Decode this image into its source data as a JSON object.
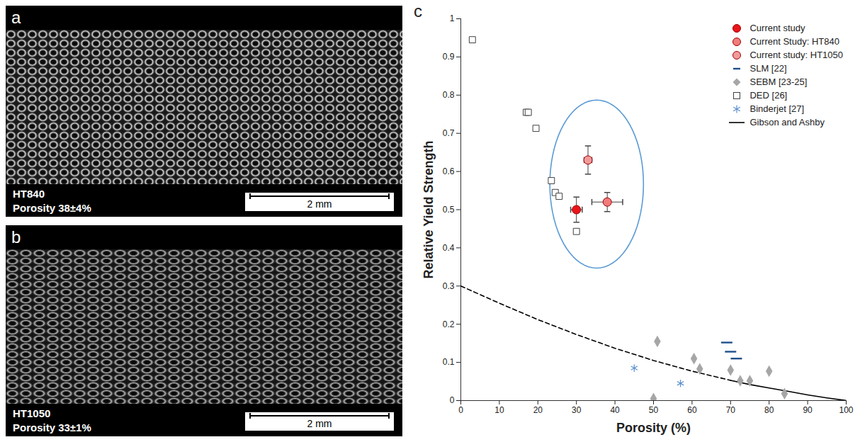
{
  "panels": [
    {
      "letter": "a",
      "label": "HT840",
      "caption": "Porosity 38±4%",
      "scale_bar": "2 mm"
    },
    {
      "letter": "b",
      "label": "HT1050",
      "caption": "Porosity 33±1%",
      "scale_bar": "2 mm"
    }
  ],
  "chart_panel": "c",
  "chart_data": {
    "type": "scatter",
    "x_label": "Porosity (%)",
    "y_label": "Relative Yield Strength",
    "xlim": [
      0,
      100
    ],
    "xticks": [
      0,
      10,
      20,
      30,
      40,
      50,
      60,
      70,
      80,
      90,
      100
    ],
    "ylim": [
      0,
      1
    ],
    "yticks": [
      0,
      0.1,
      0.2,
      0.3,
      0.4,
      0.5,
      0.6,
      0.7,
      0.8,
      0.9,
      1
    ],
    "grid": false,
    "legend": "top-right",
    "series": [
      {
        "name": "Current study",
        "type": "scatter",
        "marker": "circle",
        "color": "#e8161b",
        "x": [
          30
        ],
        "values": [
          0.5
        ],
        "xerr": [
          1.5
        ],
        "yerr": [
          0.033
        ]
      },
      {
        "name": "Current Study: HT840",
        "type": "scatter",
        "marker": "circle",
        "color": "#f07c7c",
        "x": [
          38
        ],
        "values": [
          0.52
        ],
        "xerr": [
          4
        ],
        "yerr": [
          0.025
        ]
      },
      {
        "name": "Current study: HT1050",
        "type": "scatter",
        "marker": "circle",
        "color": "#f29a9a",
        "x": [
          33
        ],
        "values": [
          0.63
        ],
        "xerr": [
          1
        ],
        "yerr": [
          0.037
        ]
      },
      {
        "name": "SLM [22]",
        "type": "scatter",
        "marker": "dash",
        "color": "#1f4e8c",
        "x": [
          69,
          70,
          71.5
        ],
        "values": [
          0.152,
          0.128,
          0.11
        ]
      },
      {
        "name": "SEBM [23-25]",
        "type": "scatter",
        "marker": "diamond",
        "color": "#a6a6a6",
        "x": [
          51,
          50,
          60.5,
          62,
          70,
          72.5,
          75,
          80,
          84
        ],
        "values": [
          0.155,
          0.005,
          0.11,
          0.083,
          0.08,
          0.052,
          0.052,
          0.077,
          0.018
        ]
      },
      {
        "name": "DED [26]",
        "type": "scatter",
        "marker": "square",
        "color": "#404040",
        "x": [
          3,
          17,
          17.5,
          19.5,
          23.5,
          24.5,
          25.5,
          30
        ],
        "values": [
          0.945,
          0.755,
          0.755,
          0.713,
          0.576,
          0.545,
          0.535,
          0.443
        ]
      },
      {
        "name": "Binderjet [27]",
        "type": "scatter",
        "marker": "asterisk",
        "color": "#5b8fd0",
        "x": [
          45,
          57
        ],
        "values": [
          0.085,
          0.045
        ]
      },
      {
        "name": "Gibson and Ashby",
        "type": "line",
        "line_style": "solid",
        "color": "#000000",
        "x": [
          70,
          75,
          80,
          85,
          90,
          95,
          100
        ],
        "values": [
          0.053,
          0.042,
          0.033,
          0.024,
          0.015,
          0.007,
          0
        ]
      },
      {
        "name": "Gibson and Ashby",
        "type": "line",
        "line_style": "dashed",
        "color": "#000000",
        "x": [
          0,
          10,
          20,
          30,
          40,
          50,
          60,
          70
        ],
        "values": [
          0.3,
          0.255,
          0.212,
          0.173,
          0.137,
          0.105,
          0.077,
          0.053
        ]
      }
    ]
  }
}
